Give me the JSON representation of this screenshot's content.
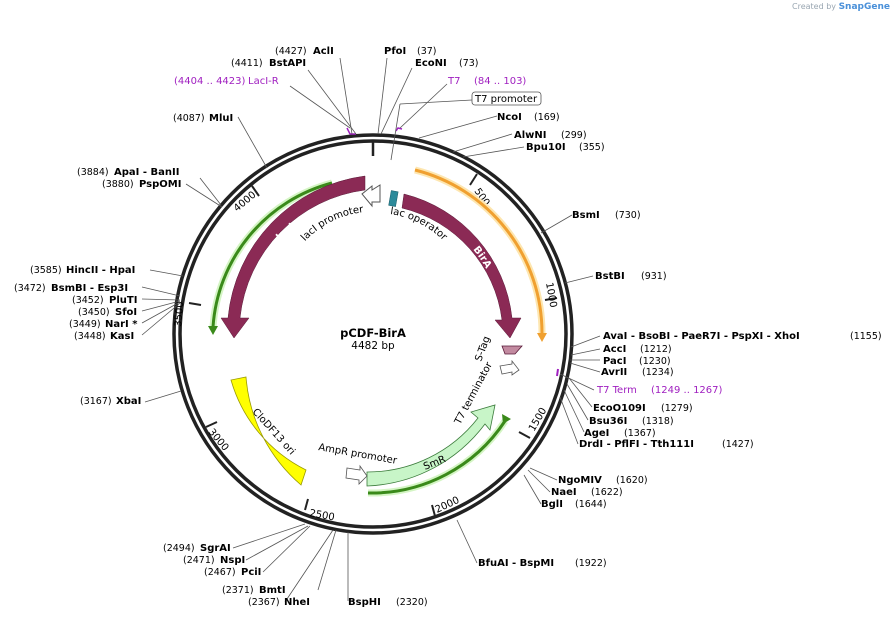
{
  "watermark": {
    "created_by": "Created by",
    "brand": "SnapGene"
  },
  "plasmid": {
    "name": "pCDF-BirA",
    "size": "4482 bp"
  },
  "ticks": [
    "500",
    "1000",
    "1500",
    "2000",
    "2500",
    "3000",
    "3500",
    "4000"
  ],
  "features": {
    "laci": "lacI",
    "laci_promoter": "lacI promoter",
    "lac_operator": "lac operator",
    "bira": "BirA",
    "stag": "S-Tag",
    "t7_terminator": "T7 terminator",
    "smr": "SmR",
    "ampr_promoter": "AmpR promoter",
    "clodf13_ori": "CloDF13 ori",
    "t7_promoter": "T7 promoter"
  },
  "primers": [
    {
      "name": "LacI-R",
      "pos": "(4404 .. 4423)"
    },
    {
      "name": "T7",
      "pos": "(84 .. 103)"
    },
    {
      "name": "T7 Term",
      "pos": "(1249 .. 1267)"
    }
  ],
  "enzymes": [
    {
      "pos": "(4427)",
      "name": "AclI"
    },
    {
      "pos": "(4411)",
      "name": "BstAPI"
    },
    {
      "name": "PfoI",
      "pos": "(37)"
    },
    {
      "name": "EcoNI",
      "pos": "(73)"
    },
    {
      "name": "NcoI",
      "pos": "(169)"
    },
    {
      "name": "AlwNI",
      "pos": "(299)"
    },
    {
      "name": "Bpu10I",
      "pos": "(355)"
    },
    {
      "name": "BsmI",
      "pos": "(730)"
    },
    {
      "name": "BstBI",
      "pos": "(931)"
    },
    {
      "name": "AvaI - BsoBI - PaeR7I - PspXI - XhoI",
      "pos": "(1155)"
    },
    {
      "name": "AccI",
      "pos": "(1212)"
    },
    {
      "name": "PacI",
      "pos": "(1230)"
    },
    {
      "name": "AvrII",
      "pos": "(1234)"
    },
    {
      "name": "EcoO109I",
      "pos": "(1279)"
    },
    {
      "name": "Bsu36I",
      "pos": "(1318)"
    },
    {
      "name": "AgeI",
      "pos": "(1367)"
    },
    {
      "name": "DrdI - PflFI - Tth111I",
      "pos": "(1427)"
    },
    {
      "name": "NgoMIV",
      "pos": "(1620)"
    },
    {
      "name": "NaeI",
      "pos": "(1622)"
    },
    {
      "name": "BglI",
      "pos": "(1644)"
    },
    {
      "name": "BfuAI - BspMI",
      "pos": "(1922)"
    },
    {
      "name": "BspHI",
      "pos": "(2320)"
    },
    {
      "pos": "(2371)",
      "name": "BmtI"
    },
    {
      "pos": "(2367)",
      "name": "NheI"
    },
    {
      "pos": "(2494)",
      "name": "SgrAI"
    },
    {
      "pos": "(2471)",
      "name": "NspI"
    },
    {
      "pos": "(2467)",
      "name": "PciI"
    },
    {
      "pos": "(3167)",
      "name": "XbaI"
    },
    {
      "pos": "(3585)",
      "name": "HincII - HpaI"
    },
    {
      "pos": "(3472)",
      "name": "BsmBI - Esp3I"
    },
    {
      "pos": "(3452)",
      "name": "PluTI"
    },
    {
      "pos": "(3450)",
      "name": "SfoI"
    },
    {
      "pos": "(3449)",
      "name": "NarI *"
    },
    {
      "pos": "(3448)",
      "name": "KasI"
    },
    {
      "pos": "(4087)",
      "name": "MluI"
    },
    {
      "pos": "(3884)",
      "name": "ApaI - BanII"
    },
    {
      "pos": "(3880)",
      "name": "PspOMI"
    }
  ],
  "colors": {
    "backbone": "#222222",
    "laci": "#8b2a55",
    "bira": "#8b2a55",
    "smr": "#c8f5c8",
    "ori": "#ffff00",
    "lac_operator": "#2d8a9a",
    "primer": "#a020c0",
    "orange_orf": "#f0a030",
    "green_orf": "#3a8a1a"
  }
}
